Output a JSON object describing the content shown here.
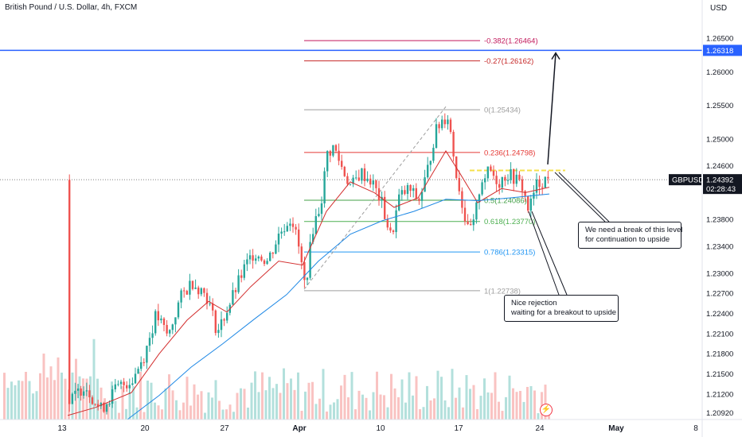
{
  "header": {
    "title": "British Pound / U.S. Dollar, 4h, FXCM",
    "currency": "USD"
  },
  "chart_data": {
    "type": "candlestick",
    "symbol": "GBPUSD",
    "ylim": [
      1.2082,
      1.2695
    ],
    "y_ticks": [
      "1.26500",
      "1.26000",
      "1.25500",
      "1.25000",
      "1.24600",
      "1.23800",
      "1.23400",
      "1.23000",
      "1.22700",
      "1.22400",
      "1.22100",
      "1.21800",
      "1.21500",
      "1.21200",
      "1.20920"
    ],
    "y_tick_values": [
      1.265,
      1.26,
      1.255,
      1.25,
      1.246,
      1.238,
      1.234,
      1.23,
      1.227,
      1.224,
      1.221,
      1.218,
      1.215,
      1.212,
      1.2092
    ],
    "x_ticks": [
      "13",
      "20",
      "27",
      "Apr",
      "10",
      "17",
      "24",
      "May",
      "8"
    ],
    "x_tick_positions": [
      78,
      182,
      282,
      376,
      478,
      576,
      678,
      774,
      874
    ],
    "price_label": {
      "symbol": "GBPUSD",
      "price": "1.24392",
      "countdown": "02:28:43",
      "value": 1.24392
    },
    "horizontal_line": {
      "label": "1.26318",
      "value": 1.26318,
      "color": "#2962ff"
    },
    "fib_levels": [
      {
        "label": "-0.382(1.26464)",
        "value": 1.26464,
        "color": "#c2185b"
      },
      {
        "label": "-0.27(1.26162)",
        "value": 1.26162,
        "color": "#c62828"
      },
      {
        "label": "0(1.25434)",
        "value": 1.25434,
        "color": "#9e9e9e"
      },
      {
        "label": "0.236(1.24798)",
        "value": 1.24798,
        "color": "#e53935"
      },
      {
        "label": "0.5(1.24086)",
        "value": 1.24086,
        "color": "#43a047"
      },
      {
        "label": "0.618(1.23770)",
        "value": 1.2377,
        "color": "#4caf50"
      },
      {
        "label": "0.786(1.23315)",
        "value": 1.23315,
        "color": "#2196f3"
      },
      {
        "label": "1(1.22738)",
        "value": 1.22738,
        "color": "#9e9e9e"
      }
    ],
    "resistance_zone": {
      "value": 1.2453,
      "color": "#f5e04a"
    },
    "anchors": [
      {
        "price": 1.2276,
        "x": 382
      },
      {
        "price": 1.2548,
        "x": 560
      }
    ],
    "candle_path": [
      {
        "x": 85,
        "price": 1.2105
      },
      {
        "x": 105,
        "price": 1.2135
      },
      {
        "x": 125,
        "price": 1.2096
      },
      {
        "x": 145,
        "price": 1.2128
      },
      {
        "x": 165,
        "price": 1.2142
      },
      {
        "x": 180,
        "price": 1.2178
      },
      {
        "x": 195,
        "price": 1.2238
      },
      {
        "x": 210,
        "price": 1.2205
      },
      {
        "x": 225,
        "price": 1.2262
      },
      {
        "x": 240,
        "price": 1.2288
      },
      {
        "x": 258,
        "price": 1.2268
      },
      {
        "x": 272,
        "price": 1.2212
      },
      {
        "x": 290,
        "price": 1.2262
      },
      {
        "x": 305,
        "price": 1.2305
      },
      {
        "x": 318,
        "price": 1.2332
      },
      {
        "x": 335,
        "price": 1.2318
      },
      {
        "x": 350,
        "price": 1.236
      },
      {
        "x": 365,
        "price": 1.2385
      },
      {
        "x": 374,
        "price": 1.2338
      },
      {
        "x": 382,
        "price": 1.2279
      },
      {
        "x": 392,
        "price": 1.2368
      },
      {
        "x": 402,
        "price": 1.2405
      },
      {
        "x": 410,
        "price": 1.2478
      },
      {
        "x": 418,
        "price": 1.2488
      },
      {
        "x": 428,
        "price": 1.2458
      },
      {
        "x": 440,
        "price": 1.2428
      },
      {
        "x": 452,
        "price": 1.245
      },
      {
        "x": 465,
        "price": 1.2438
      },
      {
        "x": 478,
        "price": 1.2405
      },
      {
        "x": 490,
        "price": 1.2352
      },
      {
        "x": 500,
        "price": 1.2412
      },
      {
        "x": 512,
        "price": 1.2425
      },
      {
        "x": 525,
        "price": 1.2408
      },
      {
        "x": 535,
        "price": 1.2448
      },
      {
        "x": 545,
        "price": 1.2508
      },
      {
        "x": 555,
        "price": 1.253
      },
      {
        "x": 562,
        "price": 1.2535
      },
      {
        "x": 570,
        "price": 1.2462
      },
      {
        "x": 578,
        "price": 1.2412
      },
      {
        "x": 586,
        "price": 1.2362
      },
      {
        "x": 594,
        "price": 1.2372
      },
      {
        "x": 603,
        "price": 1.244
      },
      {
        "x": 615,
        "price": 1.2452
      },
      {
        "x": 625,
        "price": 1.2435
      },
      {
        "x": 635,
        "price": 1.2448
      },
      {
        "x": 645,
        "price": 1.2442
      },
      {
        "x": 655,
        "price": 1.2428
      },
      {
        "x": 663,
        "price": 1.2392
      },
      {
        "x": 672,
        "price": 1.243
      },
      {
        "x": 682,
        "price": 1.244
      },
      {
        "x": 690,
        "price": 1.2439
      }
    ],
    "ema_fast": [
      {
        "x": 85,
        "price": 1.2088
      },
      {
        "x": 120,
        "price": 1.21
      },
      {
        "x": 165,
        "price": 1.2122
      },
      {
        "x": 200,
        "price": 1.218
      },
      {
        "x": 235,
        "price": 1.223
      },
      {
        "x": 262,
        "price": 1.2258
      },
      {
        "x": 285,
        "price": 1.2242
      },
      {
        "x": 315,
        "price": 1.228
      },
      {
        "x": 350,
        "price": 1.2318
      },
      {
        "x": 380,
        "price": 1.2312
      },
      {
        "x": 410,
        "price": 1.2392
      },
      {
        "x": 440,
        "price": 1.2436
      },
      {
        "x": 470,
        "price": 1.242
      },
      {
        "x": 495,
        "price": 1.2398
      },
      {
        "x": 525,
        "price": 1.2412
      },
      {
        "x": 560,
        "price": 1.2482
      },
      {
        "x": 578,
        "price": 1.2448
      },
      {
        "x": 600,
        "price": 1.2405
      },
      {
        "x": 630,
        "price": 1.2426
      },
      {
        "x": 660,
        "price": 1.242
      },
      {
        "x": 690,
        "price": 1.2428
      }
    ],
    "ema_slow": [
      {
        "x": 160,
        "price": 1.2082
      },
      {
        "x": 200,
        "price": 1.2118
      },
      {
        "x": 240,
        "price": 1.216
      },
      {
        "x": 280,
        "price": 1.2195
      },
      {
        "x": 320,
        "price": 1.2232
      },
      {
        "x": 360,
        "price": 1.2268
      },
      {
        "x": 400,
        "price": 1.2318
      },
      {
        "x": 440,
        "price": 1.2358
      },
      {
        "x": 480,
        "price": 1.2378
      },
      {
        "x": 520,
        "price": 1.2392
      },
      {
        "x": 560,
        "price": 1.241
      },
      {
        "x": 600,
        "price": 1.2408
      },
      {
        "x": 640,
        "price": 1.2412
      },
      {
        "x": 690,
        "price": 1.2418
      }
    ],
    "annotations": [
      "We need a break of this level",
      "for continuation to upside",
      "Nice rejection",
      "waiting for a breakout to upside"
    ],
    "indicator_icon": "lightning-icon",
    "colors": {
      "up": "#26a69a",
      "down": "#ef5350",
      "blue_line": "#2962ff",
      "ema_fast": "#d32f2f",
      "ema_slow": "#1e88e5"
    }
  }
}
